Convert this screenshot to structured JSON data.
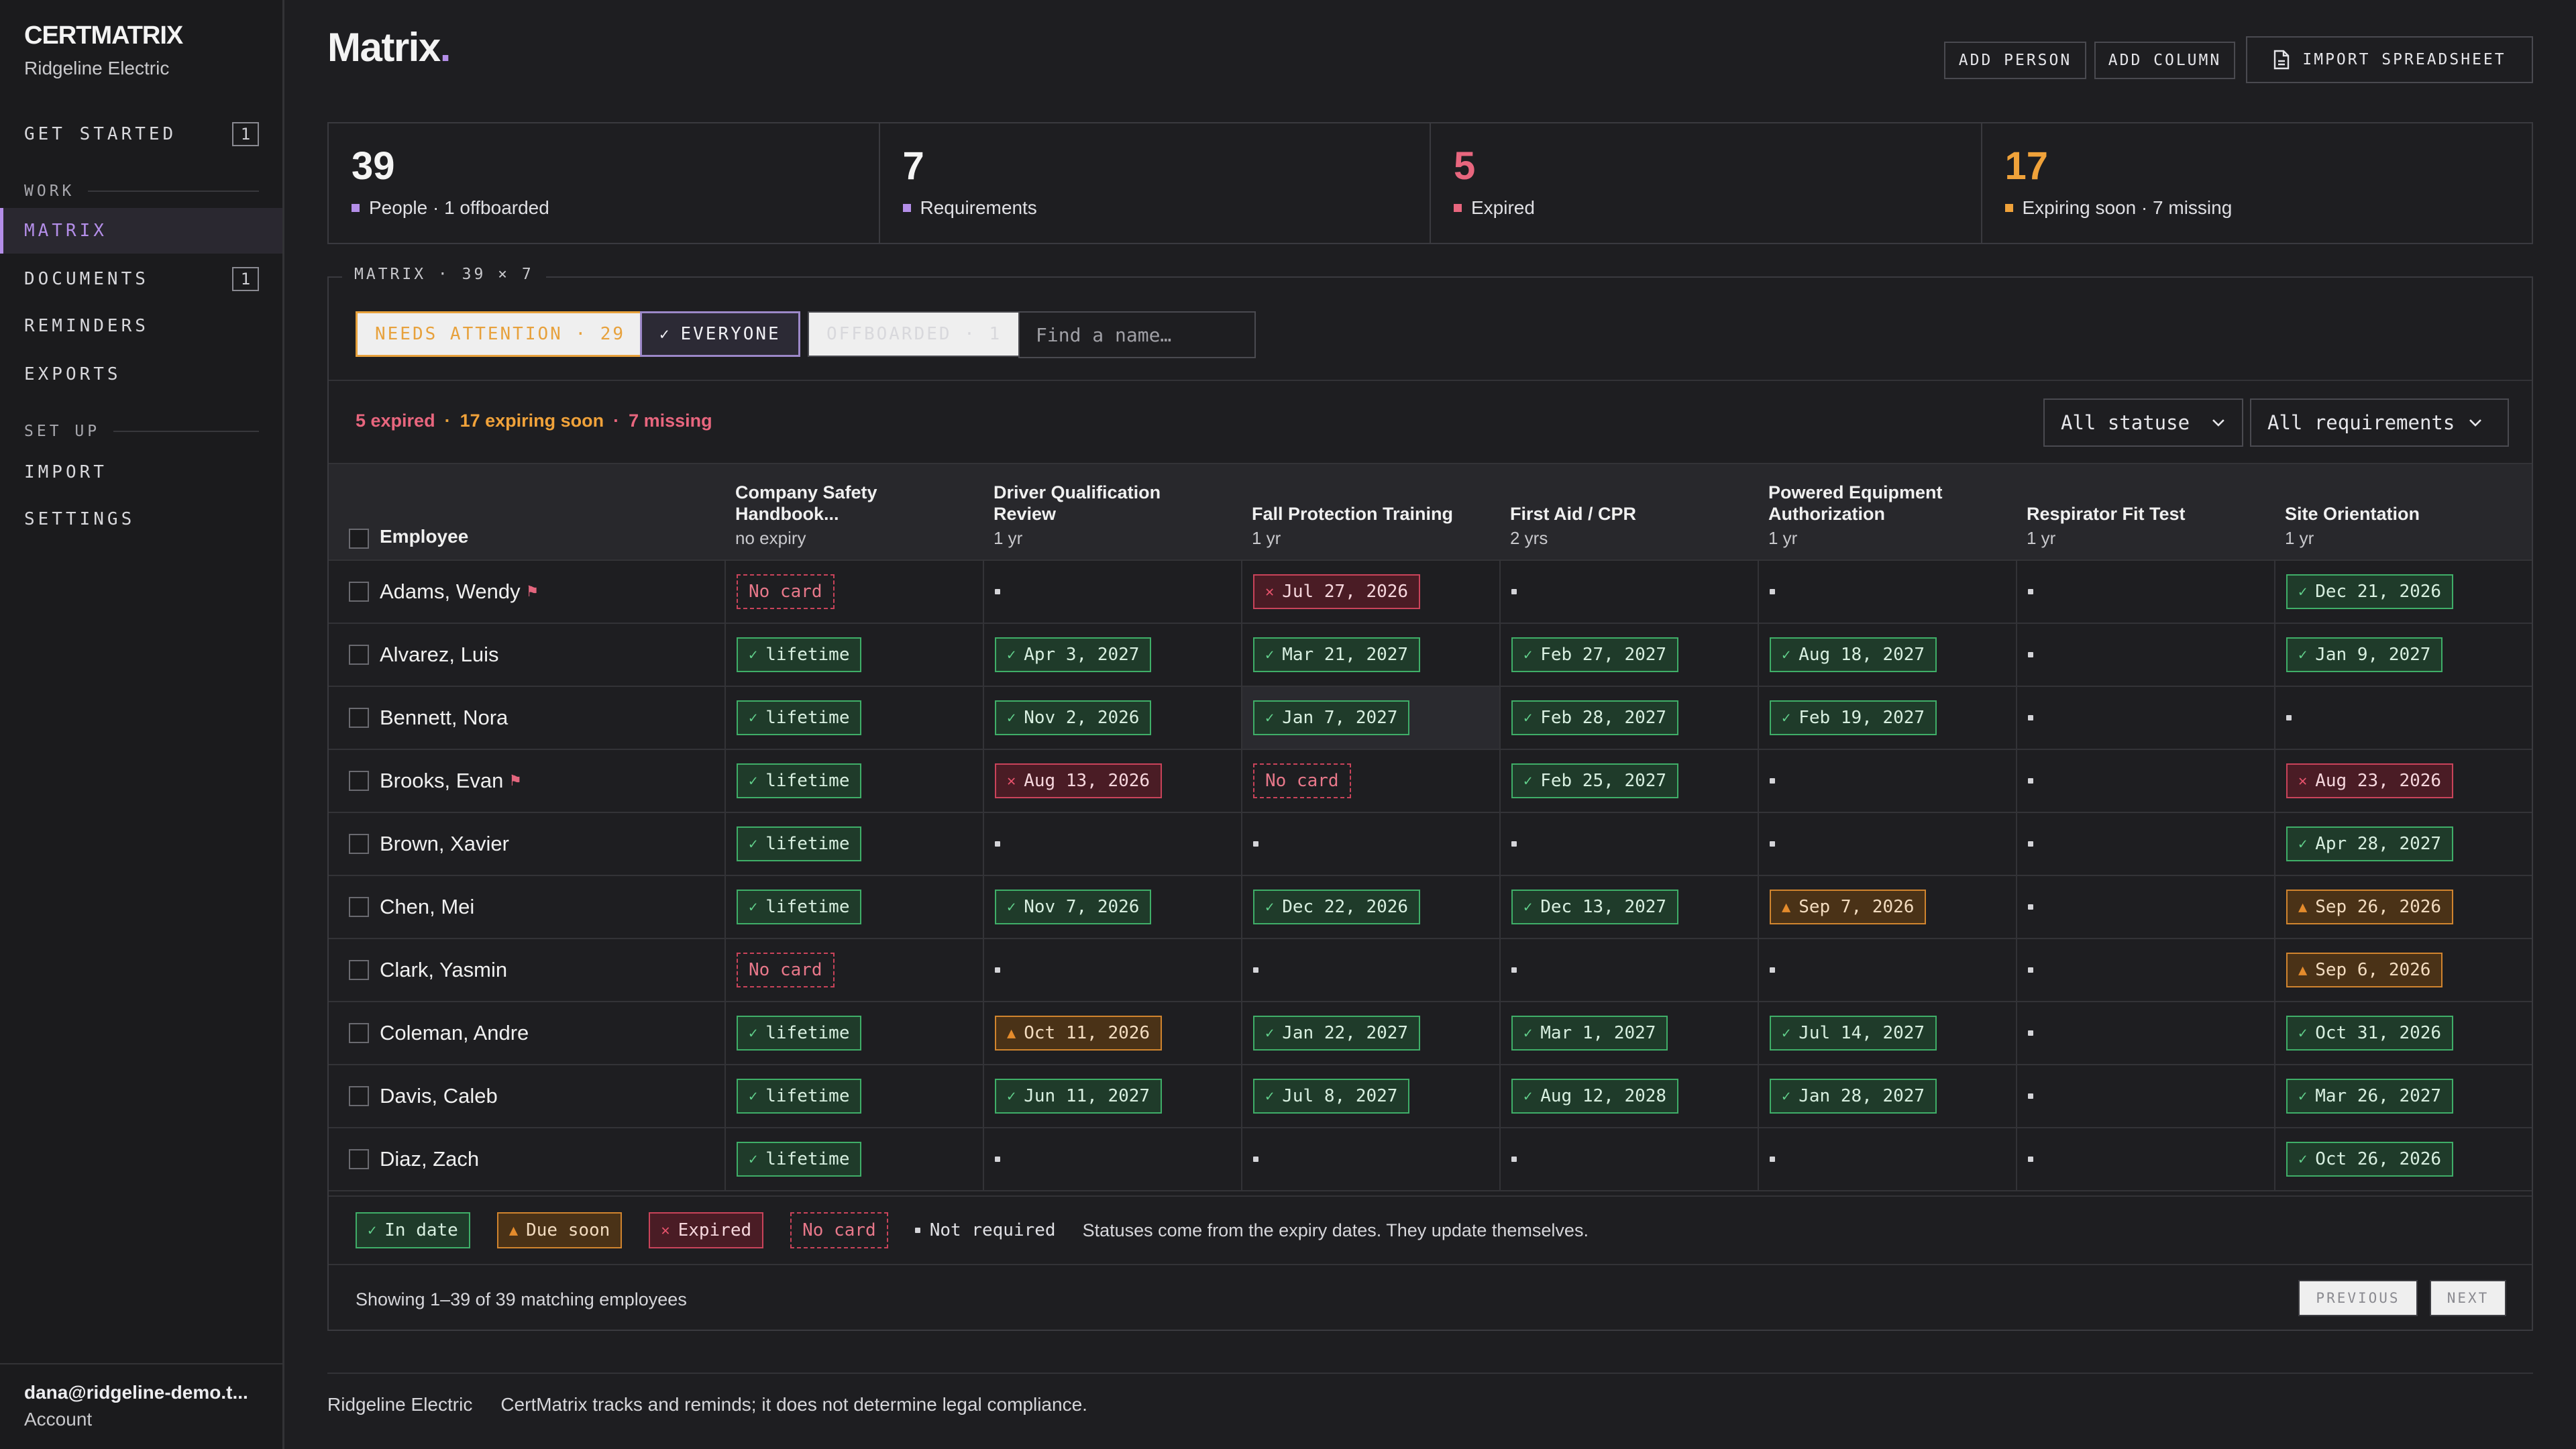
{
  "app": {
    "brand": "CERTMATRIX",
    "org": "Ridgeline Electric"
  },
  "sidebar": {
    "get_started": {
      "label": "GET STARTED",
      "badge": "1"
    },
    "work_label": "WORK",
    "matrix": "MATRIX",
    "documents": {
      "label": "DOCUMENTS",
      "badge": "1"
    },
    "reminders": "REMINDERS",
    "exports": "EXPORTS",
    "setup_label": "SET UP",
    "import": "IMPORT",
    "settings": "SETTINGS",
    "account_email": "dana@ridgeline-demo.t...",
    "account_label": "Account"
  },
  "header": {
    "title": "Matrix",
    "title_dot": ".",
    "add_person": "ADD PERSON",
    "add_column": "ADD COLUMN",
    "import_spreadsheet": "IMPORT SPREADSHEET"
  },
  "stats": [
    {
      "value": "39",
      "label": "People · 1 offboarded",
      "color": "#b48ee8"
    },
    {
      "value": "7",
      "label": "Requirements",
      "color": "#b48ee8"
    },
    {
      "value": "5",
      "label": "Expired",
      "color": "#e8667e"
    },
    {
      "value": "17",
      "label": "Expiring soon · 7 missing",
      "color": "#f0a23a"
    }
  ],
  "panel": {
    "legend": "MATRIX · 39 × 7",
    "filter_attention": "NEEDS ATTENTION · 29",
    "filter_everyone": "EVERYONE",
    "filter_offboarded": "OFFBOARDED · 1",
    "search_placeholder": "Find a name…",
    "summary_expired": "5 expired",
    "summary_sep": "·",
    "summary_soon": "17 expiring soon",
    "summary_missing": "7 missing",
    "status_select": "All statuse",
    "req_select": "All requirements"
  },
  "table": {
    "employee_header": "Employee",
    "columns": [
      {
        "name": "Company Safety Handbook...",
        "sub": "no expiry"
      },
      {
        "name": "Driver Qualification Review",
        "sub": "1 yr"
      },
      {
        "name": "Fall Protection Training",
        "sub": "1 yr"
      },
      {
        "name": "First Aid / CPR",
        "sub": "2 yrs"
      },
      {
        "name": "Powered Equipment Authorization",
        "sub": "1 yr"
      },
      {
        "name": "Respirator Fit Test",
        "sub": "1 yr"
      },
      {
        "name": "Site Orientation",
        "sub": "1 yr"
      }
    ],
    "rows": [
      {
        "name": "Adams, Wendy",
        "flag": true,
        "cells": [
          [
            "nocard",
            "No card"
          ],
          [
            "nr",
            ""
          ],
          [
            "exp",
            "Jul 27, 2026"
          ],
          [
            "nr",
            ""
          ],
          [
            "nr",
            ""
          ],
          [
            "nr",
            ""
          ],
          [
            "ok",
            "Dec 21, 2026"
          ]
        ]
      },
      {
        "name": "Alvarez, Luis",
        "flag": false,
        "cells": [
          [
            "ok",
            "lifetime"
          ],
          [
            "ok",
            "Apr 3, 2027"
          ],
          [
            "ok",
            "Mar 21, 2027"
          ],
          [
            "ok",
            "Feb 27, 2027"
          ],
          [
            "ok",
            "Aug 18, 2027"
          ],
          [
            "nr",
            ""
          ],
          [
            "ok",
            "Jan 9, 2027"
          ]
        ]
      },
      {
        "name": "Bennett, Nora",
        "flag": false,
        "cells": [
          [
            "ok",
            "lifetime"
          ],
          [
            "ok",
            "Nov 2, 2026"
          ],
          [
            "ok",
            "Jan 7, 2027"
          ],
          [
            "ok",
            "Feb 28, 2027"
          ],
          [
            "ok",
            "Feb 19, 2027"
          ],
          [
            "nr",
            ""
          ],
          [
            "nr",
            ""
          ]
        ]
      },
      {
        "name": "Brooks, Evan",
        "flag": true,
        "cells": [
          [
            "ok",
            "lifetime"
          ],
          [
            "exp",
            "Aug 13, 2026"
          ],
          [
            "nocard",
            "No card"
          ],
          [
            "ok",
            "Feb 25, 2027"
          ],
          [
            "nr",
            ""
          ],
          [
            "nr",
            ""
          ],
          [
            "exp",
            "Aug 23, 2026"
          ]
        ]
      },
      {
        "name": "Brown, Xavier",
        "flag": false,
        "cells": [
          [
            "ok",
            "lifetime"
          ],
          [
            "nr",
            ""
          ],
          [
            "nr",
            ""
          ],
          [
            "nr",
            ""
          ],
          [
            "nr",
            ""
          ],
          [
            "nr",
            ""
          ],
          [
            "ok",
            "Apr 28, 2027"
          ]
        ]
      },
      {
        "name": "Chen, Mei",
        "flag": false,
        "cells": [
          [
            "ok",
            "lifetime"
          ],
          [
            "ok",
            "Nov 7, 2026"
          ],
          [
            "ok",
            "Dec 22, 2026"
          ],
          [
            "ok",
            "Dec 13, 2027"
          ],
          [
            "soon",
            "Sep 7, 2026"
          ],
          [
            "nr",
            ""
          ],
          [
            "soon",
            "Sep 26, 2026"
          ]
        ]
      },
      {
        "name": "Clark, Yasmin",
        "flag": false,
        "cells": [
          [
            "nocard",
            "No card"
          ],
          [
            "nr",
            ""
          ],
          [
            "nr",
            ""
          ],
          [
            "nr",
            ""
          ],
          [
            "nr",
            ""
          ],
          [
            "nr",
            ""
          ],
          [
            "soon",
            "Sep 6, 2026"
          ]
        ]
      },
      {
        "name": "Coleman, Andre",
        "flag": false,
        "cells": [
          [
            "ok",
            "lifetime"
          ],
          [
            "soon",
            "Oct 11, 2026"
          ],
          [
            "ok",
            "Jan 22, 2027"
          ],
          [
            "ok",
            "Mar 1, 2027"
          ],
          [
            "ok",
            "Jul 14, 2027"
          ],
          [
            "nr",
            ""
          ],
          [
            "ok",
            "Oct 31, 2026"
          ]
        ]
      },
      {
        "name": "Davis, Caleb",
        "flag": false,
        "cells": [
          [
            "ok",
            "lifetime"
          ],
          [
            "ok",
            "Jun 11, 2027"
          ],
          [
            "ok",
            "Jul 8, 2027"
          ],
          [
            "ok",
            "Aug 12, 2028"
          ],
          [
            "ok",
            "Jan 28, 2027"
          ],
          [
            "nr",
            ""
          ],
          [
            "ok",
            "Mar 26, 2027"
          ]
        ]
      },
      {
        "name": "Diaz, Zach",
        "flag": false,
        "cells": [
          [
            "ok",
            "lifetime"
          ],
          [
            "nr",
            ""
          ],
          [
            "nr",
            ""
          ],
          [
            "nr",
            ""
          ],
          [
            "nr",
            ""
          ],
          [
            "nr",
            ""
          ],
          [
            "ok",
            "Oct 26, 2026"
          ]
        ]
      }
    ]
  },
  "legend": {
    "in_date": "In date",
    "due_soon": "Due soon",
    "expired": "Expired",
    "no_card": "No card",
    "not_required": "Not required",
    "note": "Statuses come from the expiry dates. They update themselves."
  },
  "pagination": {
    "showing": "Showing 1–39 of 39 matching employees",
    "previous": "PREVIOUS",
    "next": "NEXT"
  },
  "footer": {
    "org": "Ridgeline Electric",
    "disclaimer": "CertMatrix tracks and reminds; it does not determine legal compliance."
  }
}
